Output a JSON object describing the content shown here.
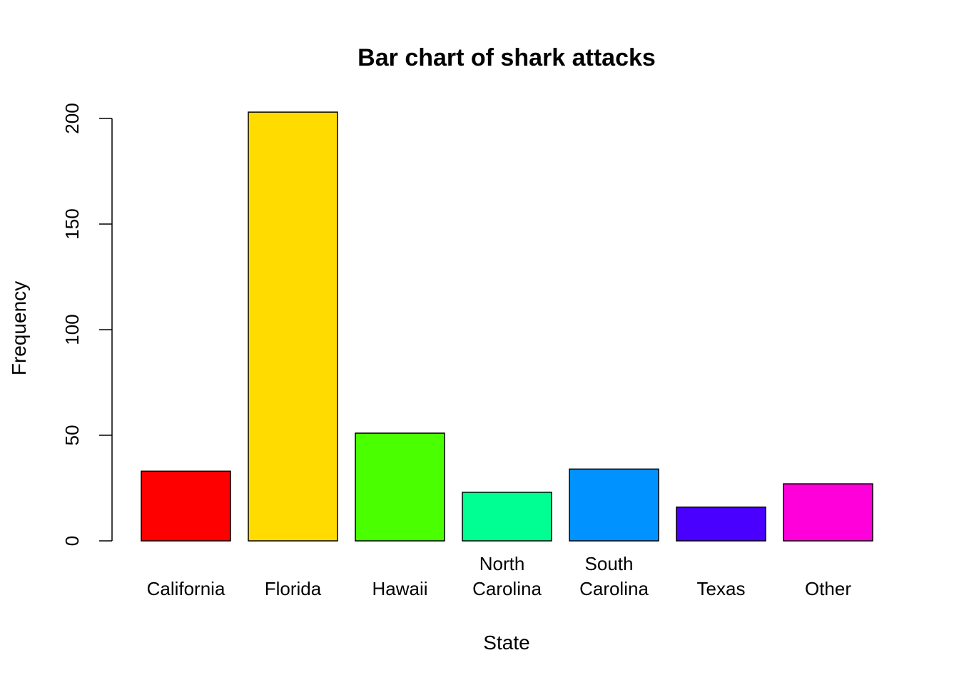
{
  "chart_data": {
    "type": "bar",
    "title": "Bar chart of shark attacks",
    "xlabel": "State",
    "ylabel": "Frequency",
    "categories": [
      "California",
      "Florida",
      "Hawaii",
      "North Carolina",
      "South Carolina",
      "Texas",
      "Other"
    ],
    "category_lines": [
      [
        "California"
      ],
      [
        "Florida"
      ],
      [
        "Hawaii"
      ],
      [
        "North",
        "Carolina"
      ],
      [
        "South",
        "Carolina"
      ],
      [
        "Texas"
      ],
      [
        "Other"
      ]
    ],
    "values": [
      33,
      203,
      51,
      23,
      34,
      16,
      27
    ],
    "colors": [
      "#FF0000",
      "#FFDB00",
      "#49FF00",
      "#00FF92",
      "#0092FF",
      "#4900FF",
      "#FF00DB"
    ],
    "ylim": [
      0,
      200
    ],
    "yticks": [
      0,
      50,
      100,
      150,
      200
    ],
    "grid": false,
    "legend": "none"
  }
}
